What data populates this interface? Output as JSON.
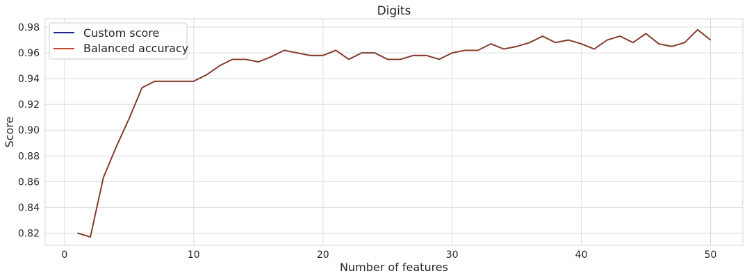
{
  "chart_data": {
    "type": "line",
    "title": "Digits",
    "xlabel": "Number of features",
    "ylabel": "Score",
    "xlim": [
      -1.5,
      52.5
    ],
    "ylim": [
      0.8105,
      0.9865
    ],
    "xticks": [
      0,
      10,
      20,
      30,
      40,
      50
    ],
    "xtick_labels": [
      "0",
      "10",
      "20",
      "30",
      "40",
      "50"
    ],
    "yticks": [
      0.82,
      0.84,
      0.86,
      0.88,
      0.9,
      0.92,
      0.94,
      0.96,
      0.98
    ],
    "ytick_labels": [
      "0.82",
      "0.84",
      "0.86",
      "0.88",
      "0.90",
      "0.92",
      "0.94",
      "0.96",
      "0.98"
    ],
    "grid": true,
    "legend_position": "top-left",
    "x": [
      1,
      2,
      3,
      4,
      5,
      6,
      7,
      8,
      9,
      10,
      11,
      12,
      13,
      14,
      15,
      16,
      17,
      18,
      19,
      20,
      21,
      22,
      23,
      24,
      25,
      26,
      27,
      28,
      29,
      30,
      31,
      32,
      33,
      34,
      35,
      36,
      37,
      38,
      39,
      40,
      41,
      42,
      43,
      44,
      45,
      46,
      47,
      48,
      49,
      50
    ],
    "series": [
      {
        "name": "Custom score",
        "color": "#1f2a8a",
        "values": [
          0.82,
          0.817,
          0.863,
          0.887,
          0.909,
          0.933,
          0.938,
          0.938,
          0.938,
          0.938,
          0.943,
          0.95,
          0.955,
          0.955,
          0.953,
          0.957,
          0.962,
          0.96,
          0.958,
          0.958,
          0.962,
          0.955,
          0.96,
          0.96,
          0.955,
          0.955,
          0.958,
          0.958,
          0.955,
          0.96,
          0.962,
          0.962,
          0.967,
          0.963,
          0.965,
          0.968,
          0.973,
          0.968,
          0.97,
          0.967,
          0.963,
          0.97,
          0.973,
          0.968,
          0.975,
          0.967,
          0.965,
          0.968,
          0.978,
          0.97
        ]
      },
      {
        "name": "Balanced accuracy",
        "color": "#c14a2a",
        "values": [
          0.82,
          0.817,
          0.863,
          0.887,
          0.909,
          0.933,
          0.938,
          0.938,
          0.938,
          0.938,
          0.943,
          0.95,
          0.955,
          0.955,
          0.953,
          0.957,
          0.962,
          0.96,
          0.958,
          0.958,
          0.962,
          0.955,
          0.96,
          0.96,
          0.955,
          0.955,
          0.958,
          0.958,
          0.955,
          0.96,
          0.962,
          0.962,
          0.967,
          0.963,
          0.965,
          0.968,
          0.973,
          0.968,
          0.97,
          0.967,
          0.963,
          0.97,
          0.973,
          0.968,
          0.975,
          0.967,
          0.965,
          0.968,
          0.978,
          0.97
        ]
      }
    ],
    "overlay_color": "#8b3a22"
  }
}
